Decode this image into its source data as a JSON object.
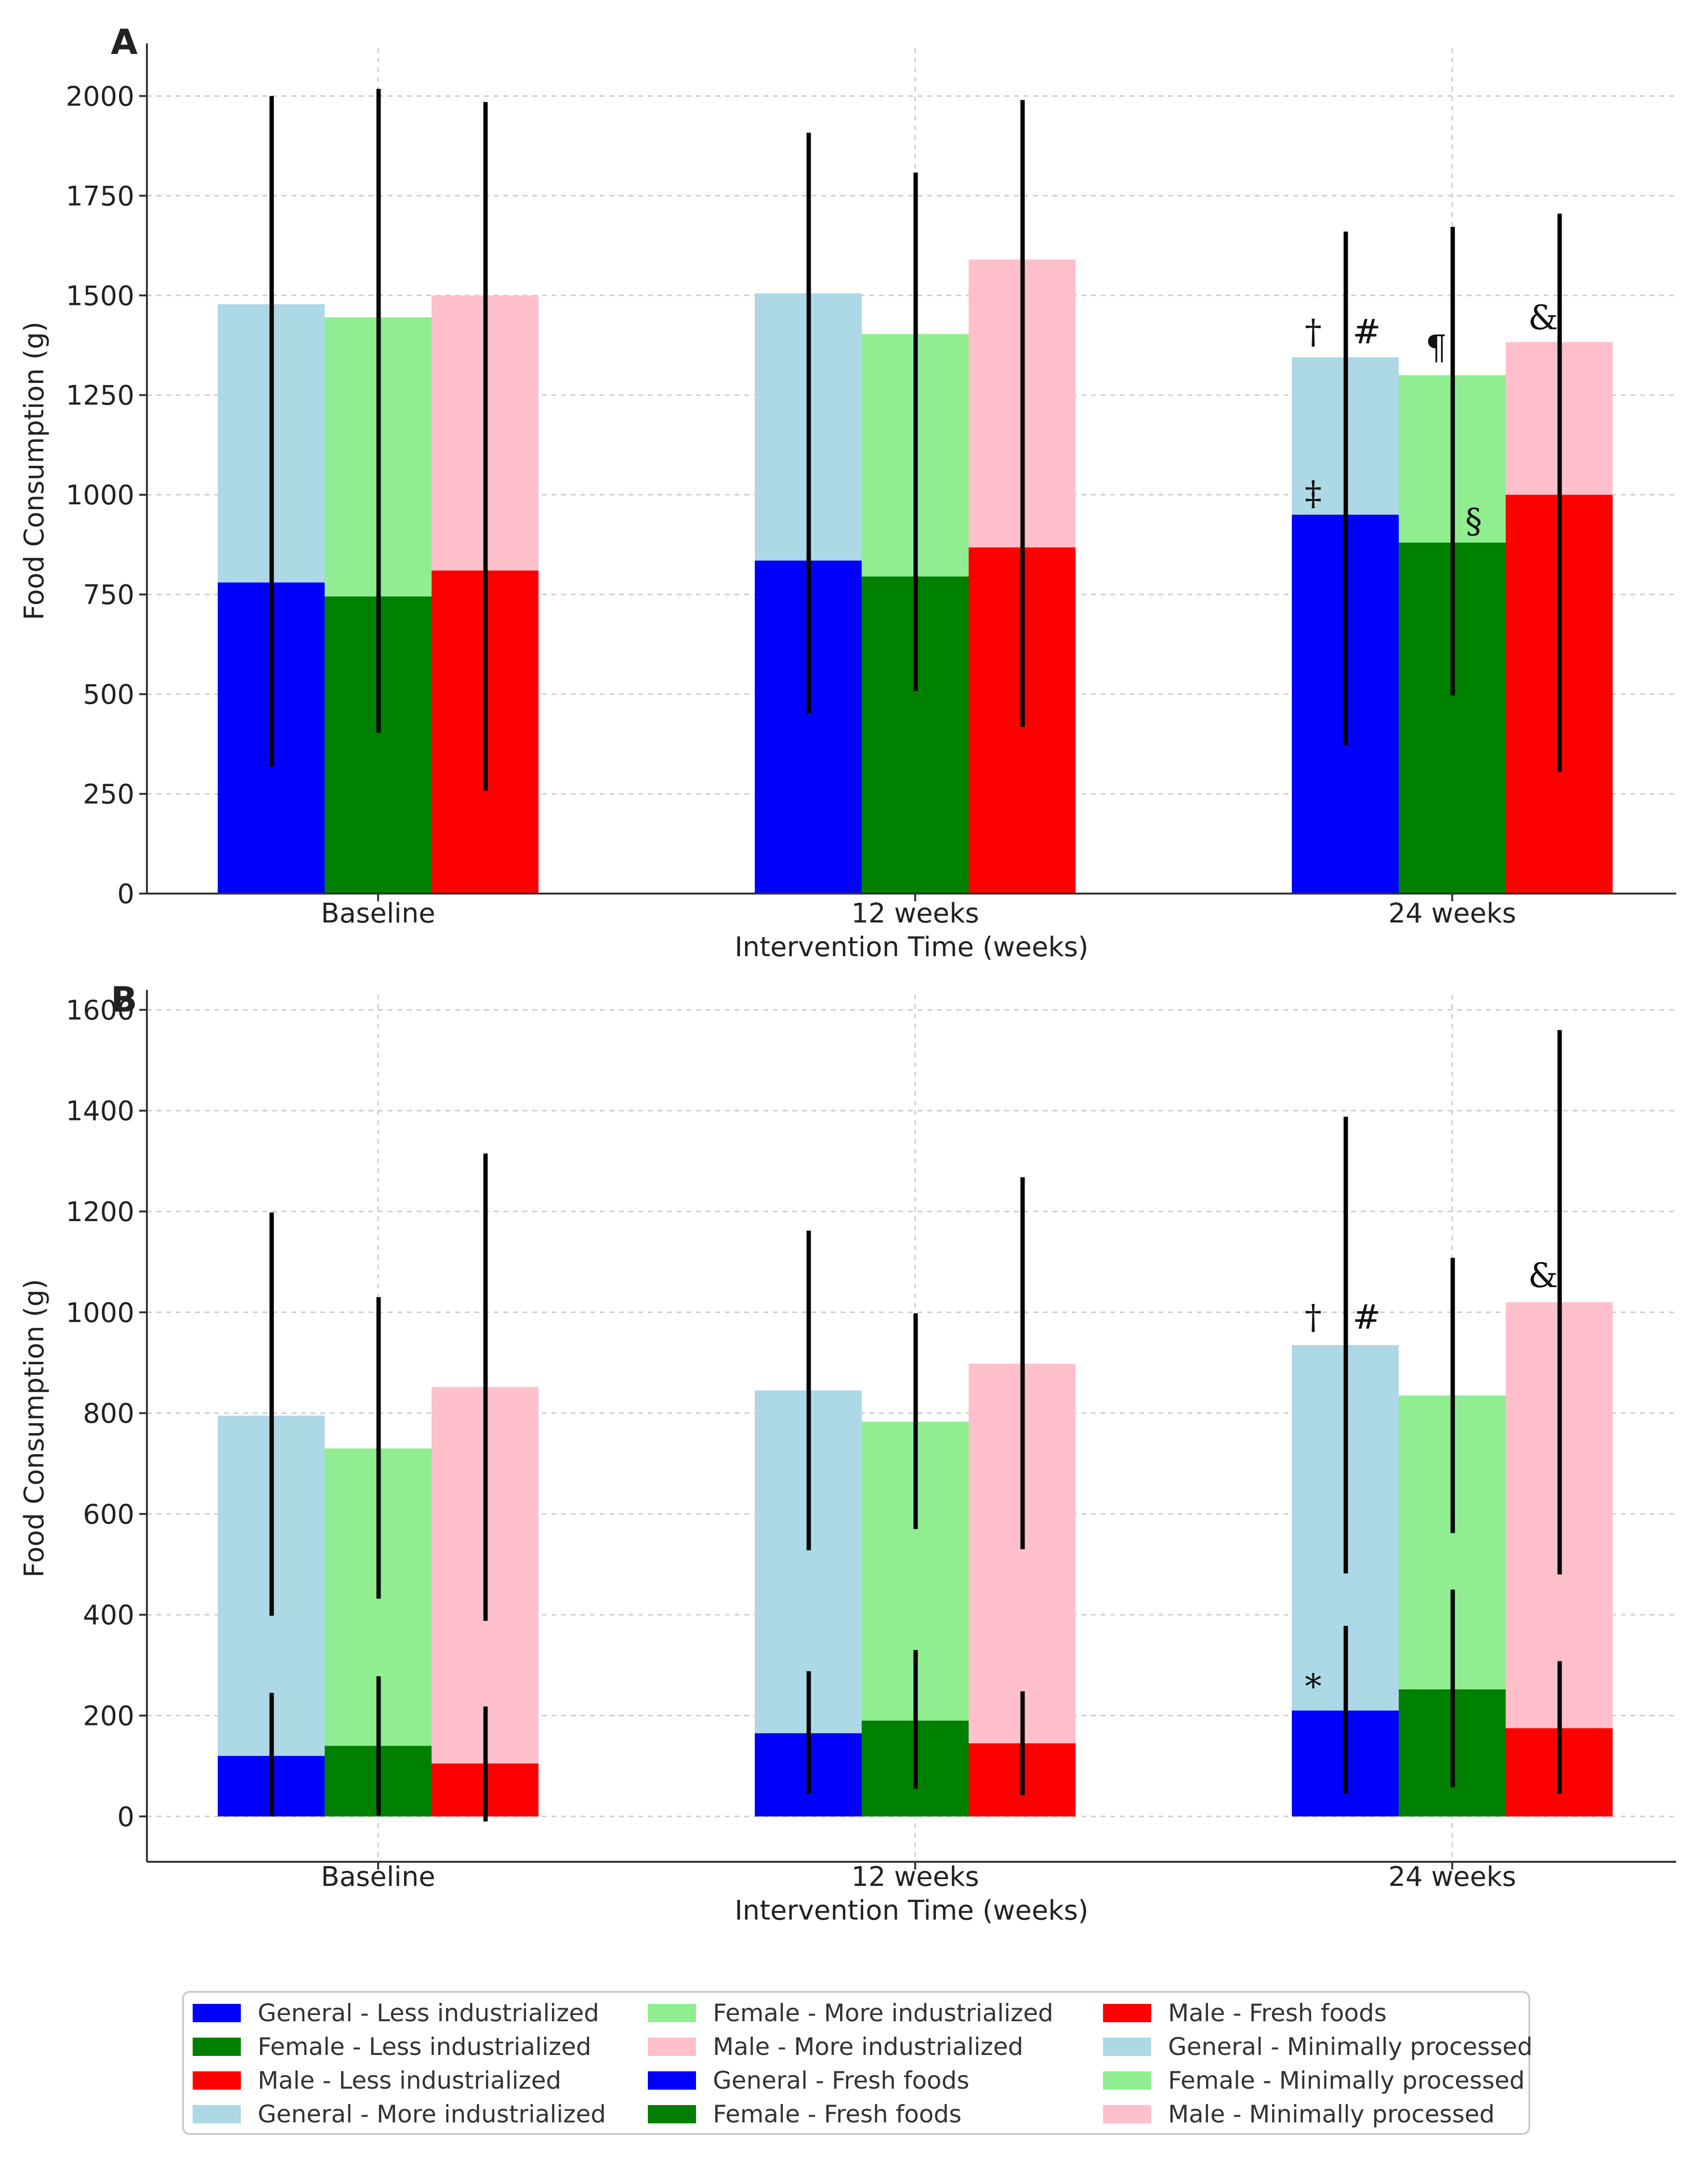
{
  "chart_data": [
    {
      "type": "bar",
      "panel_label": "A",
      "title": "",
      "xlabel": "Intervention Time (weeks)",
      "ylabel": "Food Consumption (g)",
      "ylim": [
        0,
        2120
      ],
      "yticks": [
        0,
        250,
        500,
        750,
        1000,
        1250,
        1500,
        1750,
        2000
      ],
      "grid": true,
      "categories": [
        "Baseline",
        "12 weeks",
        "24 weeks"
      ],
      "groups": [
        "General",
        "Female",
        "Male"
      ],
      "series": [
        {
          "name": "General - Fresh foods",
          "group": "General",
          "layer": "bottom",
          "color": "#0000ff",
          "values": [
            780,
            835,
            950
          ]
        },
        {
          "name": "General - Minimally processed",
          "group": "General",
          "layer": "top",
          "color": "#add8e6",
          "values": [
            1478,
            1505,
            1345
          ]
        },
        {
          "name": "Female - Fresh foods",
          "group": "Female",
          "layer": "bottom",
          "color": "#008000",
          "values": [
            745,
            795,
            880
          ]
        },
        {
          "name": "Female - Minimally processed",
          "group": "Female",
          "layer": "top",
          "color": "#90ee90",
          "values": [
            1445,
            1403,
            1300
          ]
        },
        {
          "name": "Male - Fresh foods",
          "group": "Male",
          "layer": "bottom",
          "color": "#ff0000",
          "values": [
            810,
            868,
            1000
          ]
        },
        {
          "name": "Male - Minimally processed",
          "group": "Male",
          "layer": "top",
          "color": "#ffc0cb",
          "values": [
            1500,
            1590,
            1383
          ]
        }
      ],
      "error_bars": [
        {
          "group": "General",
          "low": [
            318,
            452,
            372
          ],
          "high": [
            2000,
            1908,
            1660
          ]
        },
        {
          "group": "Female",
          "low": [
            403,
            508,
            497
          ],
          "high": [
            2018,
            1808,
            1672
          ]
        },
        {
          "group": "Male",
          "low": [
            258,
            418,
            305
          ],
          "high": [
            1985,
            1990,
            1705
          ]
        }
      ],
      "annotations": [
        {
          "text": "†",
          "category": "24 weeks",
          "group": "General",
          "value": 1380,
          "offset": -0.3
        },
        {
          "text": "#",
          "category": "24 weeks",
          "group": "General",
          "value": 1380,
          "offset": 0.2
        },
        {
          "text": "¶",
          "category": "24 weeks",
          "group": "Female",
          "value": 1340,
          "offset": -0.15
        },
        {
          "text": "&",
          "category": "24 weeks",
          "group": "Male",
          "value": 1415,
          "offset": -0.15
        },
        {
          "text": "‡",
          "category": "24 weeks",
          "group": "General",
          "value": 975,
          "offset": -0.3
        },
        {
          "text": "§",
          "category": "24 weeks",
          "group": "Female",
          "value": 905,
          "offset": 0.2
        }
      ]
    },
    {
      "type": "bar",
      "panel_label": "B",
      "title": "",
      "xlabel": "Intervention Time (weeks)",
      "ylabel": "Food Consumption (g)",
      "ylim": [
        -90,
        1630
      ],
      "yticks": [
        0,
        200,
        400,
        600,
        800,
        1000,
        1200,
        1400,
        1600
      ],
      "grid": true,
      "categories": [
        "Baseline",
        "12 weeks",
        "24 weeks"
      ],
      "groups": [
        "General",
        "Female",
        "Male"
      ],
      "series": [
        {
          "name": "General - Less industrialized",
          "group": "General",
          "layer": "bottom",
          "color": "#0000ff",
          "values": [
            120,
            165,
            210
          ]
        },
        {
          "name": "General - More industrialized",
          "group": "General",
          "layer": "top",
          "color": "#add8e6",
          "values": [
            795,
            845,
            935
          ]
        },
        {
          "name": "Female - Less industrialized",
          "group": "Female",
          "layer": "bottom",
          "color": "#008000",
          "values": [
            140,
            190,
            252
          ]
        },
        {
          "name": "Female - More industrialized",
          "group": "Female",
          "layer": "top",
          "color": "#90ee90",
          "values": [
            730,
            783,
            835
          ]
        },
        {
          "name": "Male - Less industrialized",
          "group": "Male",
          "layer": "bottom",
          "color": "#ff0000",
          "values": [
            105,
            145,
            175
          ]
        },
        {
          "name": "Male - More industrialized",
          "group": "Male",
          "layer": "top",
          "color": "#ffc0cb",
          "values": [
            852,
            898,
            1020
          ]
        }
      ],
      "error_bars": [
        {
          "group": "General",
          "band": "top",
          "low": [
            398,
            528,
            482
          ],
          "high": [
            1198,
            1162,
            1388
          ]
        },
        {
          "group": "Female",
          "band": "top",
          "low": [
            432,
            570,
            562
          ],
          "high": [
            1030,
            998,
            1108
          ]
        },
        {
          "group": "Male",
          "band": "top",
          "low": [
            388,
            530,
            480
          ],
          "high": [
            1315,
            1268,
            1560
          ]
        },
        {
          "group": "General",
          "band": "bottom",
          "low": [
            0,
            45,
            45
          ],
          "high": [
            245,
            288,
            378
          ]
        },
        {
          "group": "Female",
          "band": "bottom",
          "low": [
            2,
            55,
            58
          ],
          "high": [
            278,
            330,
            450
          ]
        },
        {
          "group": "Male",
          "band": "bottom",
          "low": [
            -10,
            42,
            45
          ],
          "high": [
            218,
            248,
            308
          ]
        }
      ],
      "annotations": [
        {
          "text": "†",
          "category": "24 weeks",
          "group": "General",
          "value": 968,
          "offset": -0.3
        },
        {
          "text": "#",
          "category": "24 weeks",
          "group": "General",
          "value": 968,
          "offset": 0.2
        },
        {
          "text": "&",
          "category": "24 weeks",
          "group": "Male",
          "value": 1050,
          "offset": -0.15
        },
        {
          "text": "*",
          "category": "24 weeks",
          "group": "General",
          "value": 235,
          "offset": -0.3
        }
      ]
    }
  ],
  "legend": {
    "position": "bottom",
    "columns": 3,
    "items": [
      {
        "label": "General - Less industrialized",
        "color": "#0000ff"
      },
      {
        "label": "Female - Less industrialized",
        "color": "#008000"
      },
      {
        "label": "Male - Less industrialized",
        "color": "#ff0000"
      },
      {
        "label": "General - More industrialized",
        "color": "#add8e6"
      },
      {
        "label": "Female - More industrialized",
        "color": "#90ee90"
      },
      {
        "label": "Male - More industrialized",
        "color": "#ffc0cb"
      },
      {
        "label": "General - Fresh foods",
        "color": "#0000ff"
      },
      {
        "label": "Female - Fresh foods",
        "color": "#008000"
      },
      {
        "label": "Male - Fresh foods",
        "color": "#ff0000"
      },
      {
        "label": "General - Minimally processed",
        "color": "#add8e6"
      },
      {
        "label": "Female - Minimally processed",
        "color": "#90ee90"
      },
      {
        "label": "Male - Minimally processed",
        "color": "#ffc0cb"
      }
    ]
  }
}
